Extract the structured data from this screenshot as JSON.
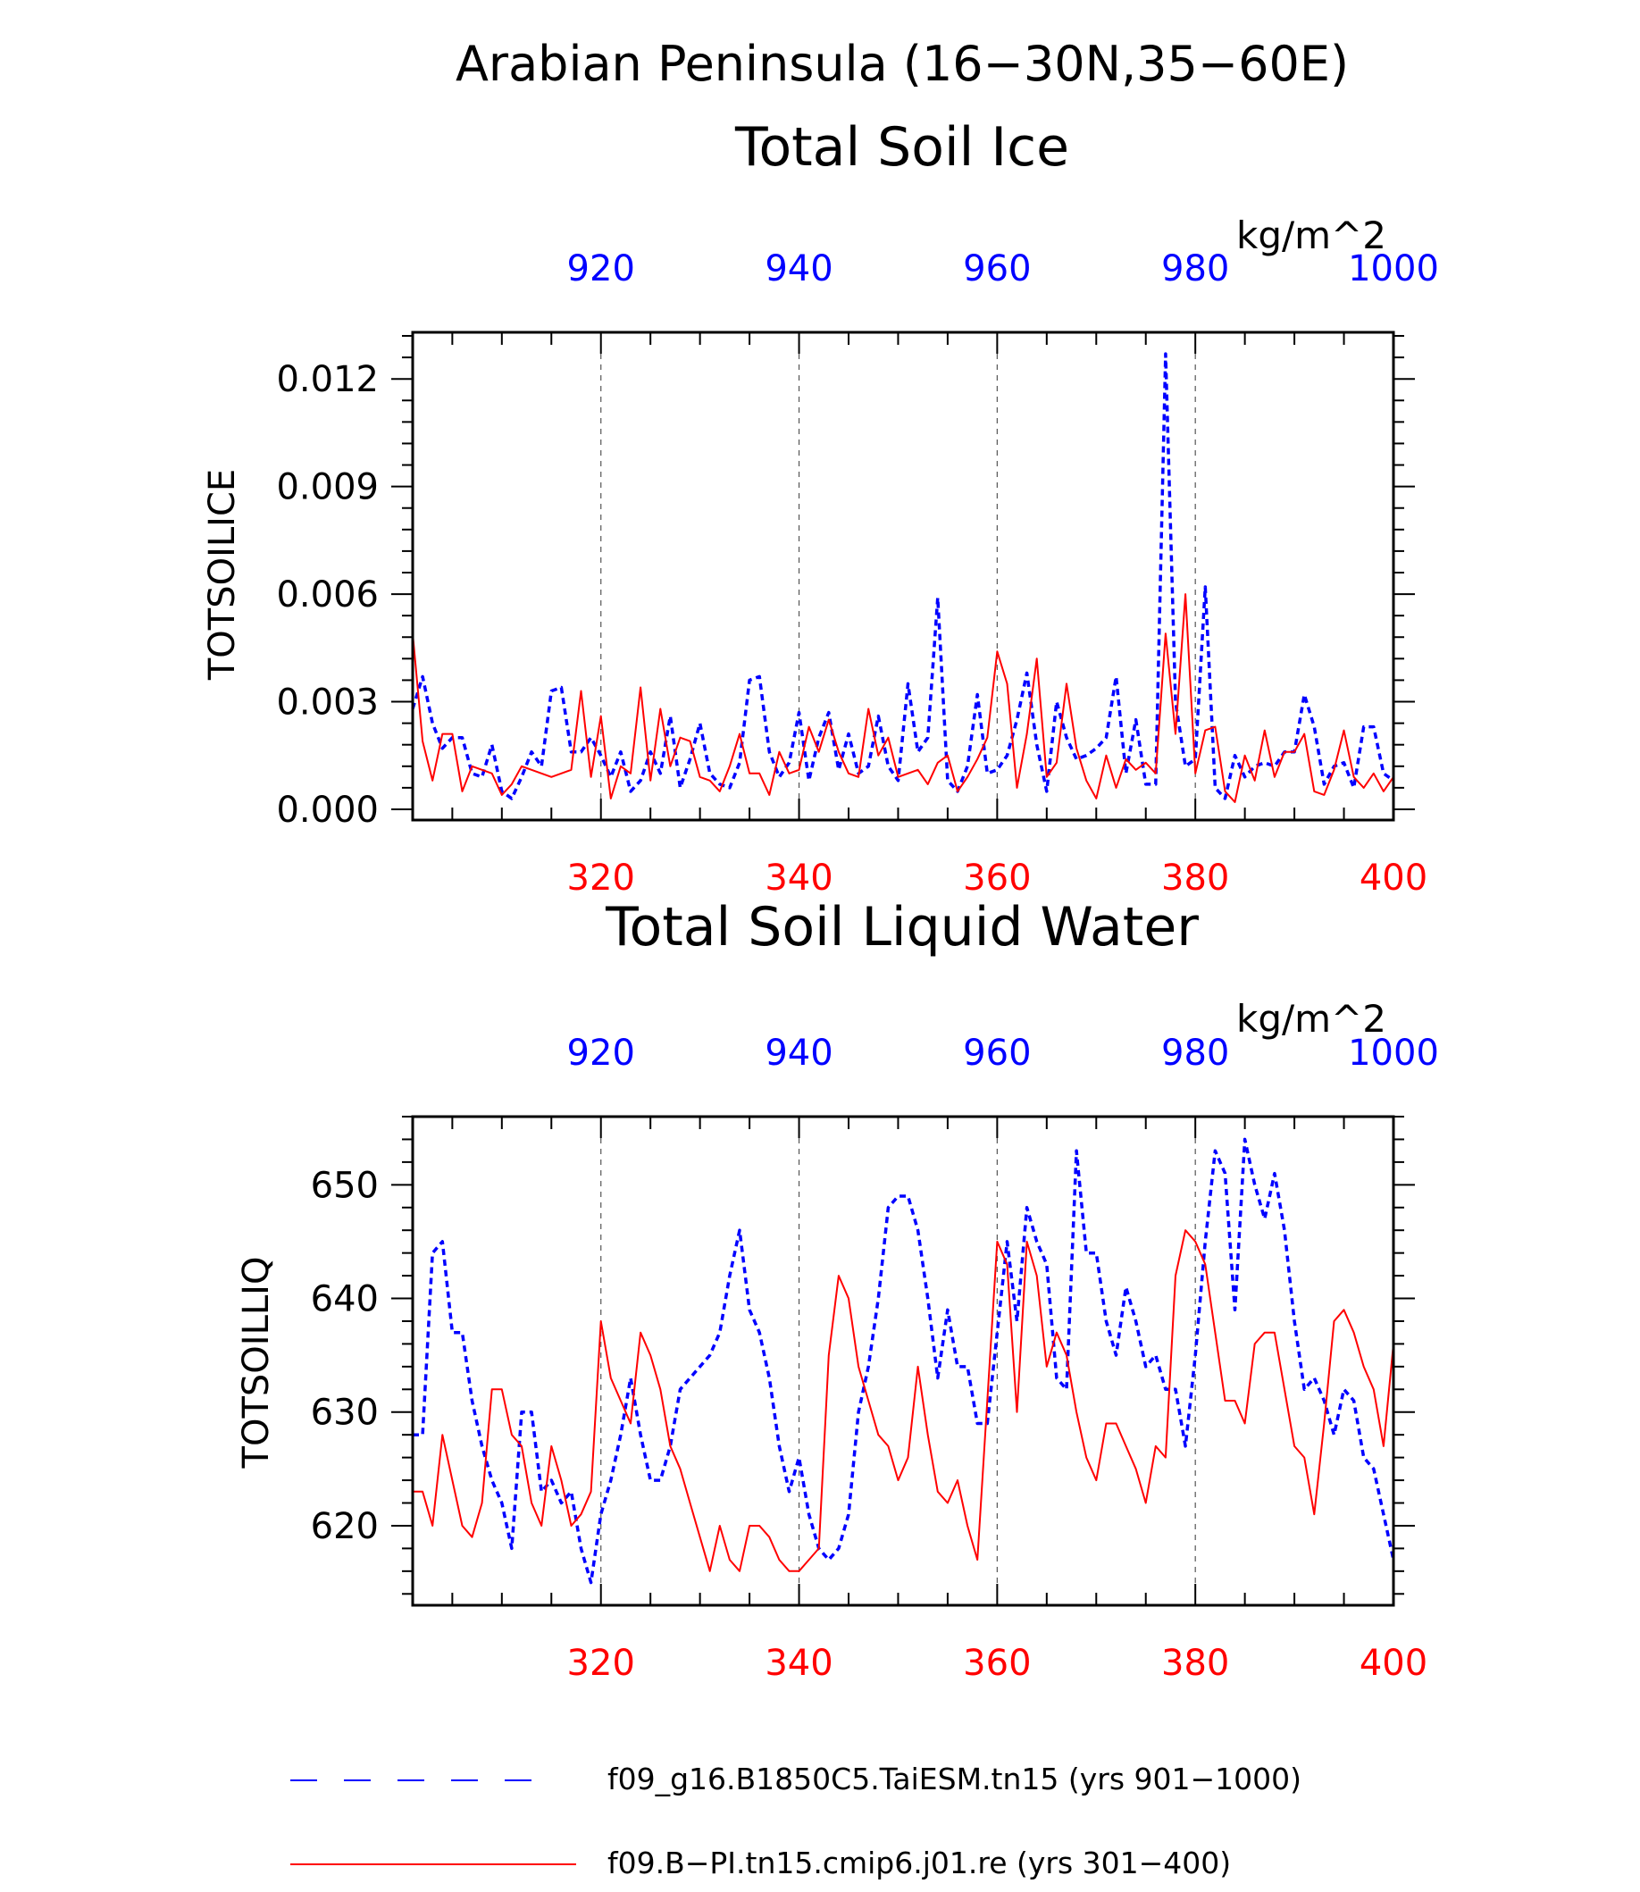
{
  "page": {
    "title": "Arabian Peninsula (16−30N,35−60E)"
  },
  "colors": {
    "blue": "#0000ff",
    "red": "#ff0000",
    "black": "#000000",
    "grid": "#555555"
  },
  "legend": {
    "items": [
      {
        "label": "f09_g16.B1850C5.TaiESM.tn15 (yrs 901−1000)",
        "color": "#0000ff",
        "style": "dashed"
      },
      {
        "label": "f09.B−PI.tn15.cmip6.j01.re (yrs 301−400)",
        "color": "#ff0000",
        "style": "solid"
      }
    ]
  },
  "chart_data": [
    {
      "type": "line",
      "title": "Total Soil Ice",
      "ylabel": "TOTSOILICE",
      "units": "kg/m^2",
      "ylim": [
        -0.0003,
        0.0133
      ],
      "yticks": [
        0.0,
        0.003,
        0.006,
        0.009,
        0.012
      ],
      "ytick_labels": [
        "0.000",
        "0.003",
        "0.006",
        "0.009",
        "0.012"
      ],
      "xlim_bottom": [
        301,
        400
      ],
      "xticks_bottom": [
        "320",
        "340",
        "360",
        "380",
        "400"
      ],
      "xlim_top": [
        901,
        1000
      ],
      "xticks_top": [
        "920",
        "940",
        "960",
        "980",
        "1000"
      ],
      "grid": "vertical dashed at labeled x ticks",
      "series": [
        {
          "name": "f09_g16.B1850C5.TaiESM.tn15 (yrs 901−1000)",
          "axis": "top",
          "color": "#0000ff",
          "style": "dashed",
          "x": [
            901,
            902,
            903,
            904,
            905,
            906,
            907,
            908,
            909,
            910,
            911,
            912,
            913,
            914,
            915,
            916,
            917,
            918,
            919,
            920,
            921,
            922,
            923,
            924,
            925,
            926,
            927,
            928,
            929,
            930,
            931,
            932,
            933,
            934,
            935,
            936,
            937,
            938,
            939,
            940,
            941,
            942,
            943,
            944,
            945,
            946,
            947,
            948,
            949,
            950,
            951,
            952,
            953,
            954,
            955,
            956,
            957,
            958,
            959,
            960,
            961,
            962,
            963,
            964,
            965,
            966,
            967,
            968,
            969,
            970,
            971,
            972,
            973,
            974,
            975,
            976,
            977,
            978,
            979,
            980,
            981,
            982,
            983,
            984,
            985,
            986,
            987,
            988,
            989,
            990,
            991,
            992,
            993,
            994,
            995,
            996,
            997,
            998,
            999,
            1000
          ],
          "values": [
            0.0028,
            0.0037,
            0.0024,
            0.0017,
            0.002,
            0.002,
            0.001,
            0.0009,
            0.0018,
            0.0005,
            0.0003,
            0.0009,
            0.0016,
            0.0012,
            0.0033,
            0.0034,
            0.0016,
            0.0016,
            0.002,
            0.0015,
            0.0009,
            0.0016,
            0.0005,
            0.0008,
            0.0016,
            0.001,
            0.0026,
            0.0006,
            0.0014,
            0.0024,
            0.001,
            0.0007,
            0.0006,
            0.0013,
            0.0036,
            0.0037,
            0.0016,
            0.0009,
            0.0013,
            0.0027,
            0.0008,
            0.002,
            0.0027,
            0.0011,
            0.0021,
            0.001,
            0.0012,
            0.0026,
            0.0012,
            0.0008,
            0.0035,
            0.0016,
            0.002,
            0.0059,
            0.0008,
            0.0005,
            0.0012,
            0.0032,
            0.001,
            0.0011,
            0.0015,
            0.0025,
            0.0038,
            0.0018,
            0.0005,
            0.003,
            0.002,
            0.0014,
            0.0015,
            0.0017,
            0.002,
            0.0037,
            0.001,
            0.0025,
            0.0007,
            0.0007,
            0.0127,
            0.003,
            0.0012,
            0.0014,
            0.0062,
            0.0006,
            0.0003,
            0.0015,
            0.0009,
            0.0012,
            0.0013,
            0.0012,
            0.0016,
            0.0016,
            0.0032,
            0.0023,
            0.0007,
            0.0012,
            0.0013,
            0.0006,
            0.0023,
            0.0023,
            0.001,
            0.0008
          ]
        },
        {
          "name": "f09.B−PI.tn15.cmip6.j01.re (yrs 301−400)",
          "axis": "bottom",
          "color": "#ff0000",
          "style": "solid",
          "x": [
            301,
            302,
            303,
            304,
            305,
            306,
            307,
            308,
            309,
            310,
            311,
            312,
            313,
            314,
            315,
            316,
            317,
            318,
            319,
            320,
            321,
            322,
            323,
            324,
            325,
            326,
            327,
            328,
            329,
            330,
            331,
            332,
            333,
            334,
            335,
            336,
            337,
            338,
            339,
            340,
            341,
            342,
            343,
            344,
            345,
            346,
            347,
            348,
            349,
            350,
            351,
            352,
            353,
            354,
            355,
            356,
            357,
            358,
            359,
            360,
            361,
            362,
            363,
            364,
            365,
            366,
            367,
            368,
            369,
            370,
            371,
            372,
            373,
            374,
            375,
            376,
            377,
            378,
            379,
            380,
            381,
            382,
            383,
            384,
            385,
            386,
            387,
            388,
            389,
            390,
            391,
            392,
            393,
            394,
            395,
            396,
            397,
            398,
            399,
            400
          ],
          "values": [
            0.0049,
            0.0019,
            0.0008,
            0.0021,
            0.0021,
            0.0005,
            0.0012,
            0.0011,
            0.001,
            0.0004,
            0.0007,
            0.0012,
            0.0011,
            0.001,
            0.0009,
            0.001,
            0.0011,
            0.0033,
            0.0009,
            0.0026,
            0.0003,
            0.0012,
            0.001,
            0.0034,
            0.0008,
            0.0028,
            0.0012,
            0.002,
            0.0019,
            0.0009,
            0.0008,
            0.0005,
            0.0012,
            0.0021,
            0.001,
            0.001,
            0.0004,
            0.0016,
            0.001,
            0.0011,
            0.0023,
            0.0016,
            0.0025,
            0.0016,
            0.001,
            0.0009,
            0.0028,
            0.0015,
            0.002,
            0.0009,
            0.001,
            0.0011,
            0.0007,
            0.0013,
            0.0015,
            0.0005,
            0.0009,
            0.0014,
            0.002,
            0.0044,
            0.0035,
            0.0006,
            0.0021,
            0.0042,
            0.0009,
            0.0013,
            0.0035,
            0.0017,
            0.0008,
            0.0003,
            0.0015,
            0.0006,
            0.0014,
            0.0011,
            0.0013,
            0.001,
            0.0049,
            0.0021,
            0.006,
            0.001,
            0.0022,
            0.0023,
            0.0005,
            0.0002,
            0.0015,
            0.0008,
            0.0022,
            0.0009,
            0.0016,
            0.0016,
            0.0021,
            0.0005,
            0.0004,
            0.0011,
            0.0022,
            0.0009,
            0.0006,
            0.001,
            0.0005,
            0.0009
          ]
        }
      ]
    },
    {
      "type": "line",
      "title": "Total Soil Liquid Water",
      "ylabel": "TOTSOILLIQ",
      "units": "kg/m^2",
      "ylim": [
        613,
        656
      ],
      "yticks": [
        620,
        630,
        640,
        650
      ],
      "ytick_labels": [
        "620",
        "630",
        "640",
        "650"
      ],
      "xlim_bottom": [
        301,
        400
      ],
      "xticks_bottom": [
        "320",
        "340",
        "360",
        "380",
        "400"
      ],
      "xlim_top": [
        901,
        1000
      ],
      "xticks_top": [
        "920",
        "940",
        "960",
        "980",
        "1000"
      ],
      "grid": "vertical dashed at labeled x ticks",
      "series": [
        {
          "name": "f09_g16.B1850C5.TaiESM.tn15 (yrs 901−1000)",
          "axis": "top",
          "color": "#0000ff",
          "style": "dashed",
          "x": [
            901,
            902,
            903,
            904,
            905,
            906,
            907,
            908,
            909,
            910,
            911,
            912,
            913,
            914,
            915,
            916,
            917,
            918,
            919,
            920,
            921,
            922,
            923,
            924,
            925,
            926,
            927,
            928,
            929,
            930,
            931,
            932,
            933,
            934,
            935,
            936,
            937,
            938,
            939,
            940,
            941,
            942,
            943,
            944,
            945,
            946,
            947,
            948,
            949,
            950,
            951,
            952,
            953,
            954,
            955,
            956,
            957,
            958,
            959,
            960,
            961,
            962,
            963,
            964,
            965,
            966,
            967,
            968,
            969,
            970,
            971,
            972,
            973,
            974,
            975,
            976,
            977,
            978,
            979,
            980,
            981,
            982,
            983,
            984,
            985,
            986,
            987,
            988,
            989,
            990,
            991,
            992,
            993,
            994,
            995,
            996,
            997,
            998,
            999,
            1000
          ],
          "values": [
            628,
            628,
            644,
            645,
            637,
            637,
            631,
            627,
            624,
            622,
            618,
            630,
            630,
            623,
            624,
            622,
            623,
            618,
            615,
            621,
            624,
            628,
            633,
            628,
            624,
            624,
            627,
            632,
            633,
            634,
            635,
            637,
            642,
            646,
            639,
            637,
            633,
            627,
            623,
            626,
            621,
            618,
            617,
            618,
            621,
            630,
            634,
            640,
            648,
            649,
            649,
            646,
            640,
            633,
            639,
            634,
            634,
            629,
            629,
            637,
            645,
            638,
            648,
            645,
            643,
            633,
            632,
            653,
            644,
            644,
            638,
            635,
            641,
            638,
            634,
            635,
            632,
            632,
            627,
            635,
            645,
            653,
            651,
            639,
            654,
            650,
            647,
            651,
            646,
            638,
            632,
            633,
            631,
            628,
            632,
            631,
            626,
            625,
            621,
            617
          ]
        },
        {
          "name": "f09.B−PI.tn15.cmip6.j01.re (yrs 301−400)",
          "axis": "bottom",
          "color": "#ff0000",
          "style": "solid",
          "x": [
            301,
            302,
            303,
            304,
            305,
            306,
            307,
            308,
            309,
            310,
            311,
            312,
            313,
            314,
            315,
            316,
            317,
            318,
            319,
            320,
            321,
            322,
            323,
            324,
            325,
            326,
            327,
            328,
            329,
            330,
            331,
            332,
            333,
            334,
            335,
            336,
            337,
            338,
            339,
            340,
            341,
            342,
            343,
            344,
            345,
            346,
            347,
            348,
            349,
            350,
            351,
            352,
            353,
            354,
            355,
            356,
            357,
            358,
            359,
            360,
            361,
            362,
            363,
            364,
            365,
            366,
            367,
            368,
            369,
            370,
            371,
            372,
            373,
            374,
            375,
            376,
            377,
            378,
            379,
            380,
            381,
            382,
            383,
            384,
            385,
            386,
            387,
            388,
            389,
            390,
            391,
            392,
            393,
            394,
            395,
            396,
            397,
            398,
            399,
            400
          ],
          "values": [
            623,
            623,
            620,
            628,
            624,
            620,
            619,
            622,
            632,
            632,
            628,
            627,
            622,
            620,
            627,
            624,
            620,
            621,
            623,
            638,
            633,
            631,
            629,
            637,
            635,
            632,
            627,
            625,
            622,
            619,
            616,
            620,
            617,
            616,
            620,
            620,
            619,
            617,
            616,
            616,
            617,
            618,
            635,
            642,
            640,
            634,
            631,
            628,
            627,
            624,
            626,
            634,
            628,
            623,
            622,
            624,
            620,
            617,
            631,
            645,
            643,
            630,
            645,
            642,
            634,
            637,
            635,
            630,
            626,
            624,
            629,
            629,
            627,
            625,
            622,
            627,
            626,
            642,
            646,
            645,
            643,
            637,
            631,
            631,
            629,
            636,
            637,
            637,
            632,
            627,
            626,
            621,
            629,
            638,
            639,
            637,
            634,
            632,
            627,
            636
          ]
        }
      ]
    }
  ]
}
